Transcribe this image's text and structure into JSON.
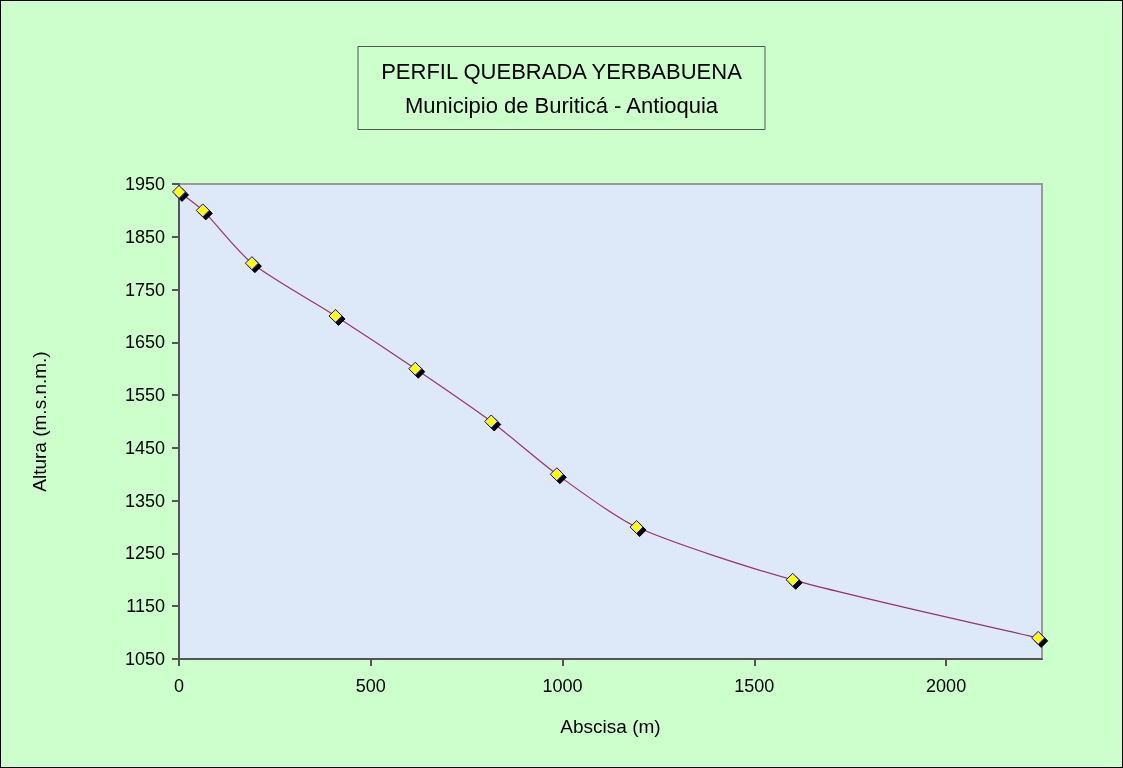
{
  "chart_data": {
    "type": "line",
    "title": "PERFIL QUEBRADA YERBABUENA",
    "subtitle": "Municipio de Buriticá - Antioquia",
    "xlabel": "Abscisa (m)",
    "ylabel": "Altura (m.s.n.m.)",
    "x": [
      0,
      62,
      190,
      408,
      616,
      814,
      985,
      1193,
      1600,
      2240
    ],
    "series": [
      {
        "color": "#993366",
        "values": [
          1935,
          1900,
          1800,
          1700,
          1600,
          1500,
          1400,
          1300,
          1200,
          1090
        ]
      }
    ],
    "xlim": [
      0,
      2250
    ],
    "xticks": [
      0,
      500,
      1000,
      1500,
      2000
    ],
    "ylim": [
      1050,
      1950
    ],
    "yticks": [
      1050,
      1150,
      1250,
      1350,
      1450,
      1550,
      1650,
      1750,
      1850,
      1950
    ],
    "grid": false,
    "marker": "diamond",
    "line_style": "solid"
  }
}
